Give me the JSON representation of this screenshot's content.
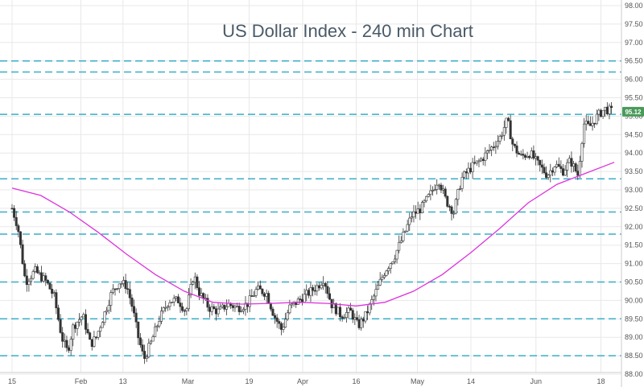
{
  "chart_data": {
    "type": "candlestick",
    "title": "US Dollar Index - 240 min Chart",
    "ylim": [
      88.0,
      98.0
    ],
    "y_ticks": [
      "98.00",
      "97.50",
      "97.00",
      "96.50",
      "96.00",
      "95.50",
      "95.00",
      "94.50",
      "94.00",
      "93.50",
      "93.00",
      "92.50",
      "92.00",
      "91.50",
      "91.00",
      "90.50",
      "90.00",
      "89.50",
      "89.00",
      "88.50",
      "88.00"
    ],
    "x_ticks": [
      "15",
      "Feb",
      "13",
      "Mar",
      "19",
      "Apr",
      "16",
      "May",
      "14",
      "Jun",
      "18"
    ],
    "current_price": "95.12",
    "horizontal_levels": [
      96.5,
      96.2,
      95.05,
      93.3,
      92.4,
      91.8,
      90.5,
      89.5,
      88.5
    ],
    "grid": true,
    "colors": {
      "candle": "#333333",
      "moving_average": "#dd33dd",
      "level_lines": "#3aaec8",
      "price_badge": "#4a9a5a",
      "grid": "#e8e8e8",
      "title": "#4a5a68"
    },
    "moving_average": [
      {
        "x": 0,
        "y": 93.05
      },
      {
        "x": 0.75,
        "y": 92.85
      },
      {
        "x": 1.5,
        "y": 92.4
      },
      {
        "x": 2.25,
        "y": 91.85
      },
      {
        "x": 3.0,
        "y": 91.25
      },
      {
        "x": 3.75,
        "y": 90.7
      },
      {
        "x": 4.5,
        "y": 90.25
      },
      {
        "x": 5.25,
        "y": 89.95
      },
      {
        "x": 6.0,
        "y": 89.9
      },
      {
        "x": 6.75,
        "y": 89.92
      },
      {
        "x": 7.5,
        "y": 89.95
      },
      {
        "x": 8.25,
        "y": 89.92
      },
      {
        "x": 9.0,
        "y": 89.85
      },
      {
        "x": 9.75,
        "y": 89.95
      },
      {
        "x": 10.5,
        "y": 90.25
      },
      {
        "x": 11.25,
        "y": 90.7
      },
      {
        "x": 12.0,
        "y": 91.3
      },
      {
        "x": 12.75,
        "y": 91.95
      },
      {
        "x": 13.5,
        "y": 92.65
      },
      {
        "x": 14.25,
        "y": 93.15
      },
      {
        "x": 15.0,
        "y": 93.45
      },
      {
        "x": 15.75,
        "y": 93.75
      }
    ],
    "price_path": [
      {
        "x": 0,
        "y": 92.5
      },
      {
        "x": 0.15,
        "y": 92.0
      },
      {
        "x": 0.35,
        "y": 90.5
      },
      {
        "x": 0.6,
        "y": 90.8
      },
      {
        "x": 0.9,
        "y": 90.5
      },
      {
        "x": 1.1,
        "y": 90.1
      },
      {
        "x": 1.3,
        "y": 89.0
      },
      {
        "x": 1.45,
        "y": 88.6
      },
      {
        "x": 1.6,
        "y": 89.3
      },
      {
        "x": 1.85,
        "y": 89.6
      },
      {
        "x": 2.05,
        "y": 88.8
      },
      {
        "x": 2.2,
        "y": 89.0
      },
      {
        "x": 2.4,
        "y": 89.6
      },
      {
        "x": 2.6,
        "y": 90.2
      },
      {
        "x": 2.8,
        "y": 90.5
      },
      {
        "x": 3.0,
        "y": 90.4
      },
      {
        "x": 3.15,
        "y": 89.8
      },
      {
        "x": 3.3,
        "y": 89.0
      },
      {
        "x": 3.45,
        "y": 88.4
      },
      {
        "x": 3.65,
        "y": 88.9
      },
      {
        "x": 3.85,
        "y": 89.5
      },
      {
        "x": 4.1,
        "y": 90.0
      },
      {
        "x": 4.35,
        "y": 90.0
      },
      {
        "x": 4.55,
        "y": 89.7
      },
      {
        "x": 4.75,
        "y": 90.7
      },
      {
        "x": 4.9,
        "y": 90.2
      },
      {
        "x": 5.15,
        "y": 89.8
      },
      {
        "x": 5.4,
        "y": 89.7
      },
      {
        "x": 5.65,
        "y": 89.9
      },
      {
        "x": 5.9,
        "y": 89.8
      },
      {
        "x": 6.15,
        "y": 89.9
      },
      {
        "x": 6.4,
        "y": 90.3
      },
      {
        "x": 6.65,
        "y": 90.2
      },
      {
        "x": 6.85,
        "y": 89.6
      },
      {
        "x": 7.05,
        "y": 89.2
      },
      {
        "x": 7.25,
        "y": 89.8
      },
      {
        "x": 7.5,
        "y": 90.0
      },
      {
        "x": 7.75,
        "y": 90.2
      },
      {
        "x": 8.0,
        "y": 90.4
      },
      {
        "x": 8.15,
        "y": 90.6
      },
      {
        "x": 8.35,
        "y": 89.9
      },
      {
        "x": 8.6,
        "y": 89.6
      },
      {
        "x": 8.85,
        "y": 89.7
      },
      {
        "x": 9.05,
        "y": 89.3
      },
      {
        "x": 9.25,
        "y": 89.6
      },
      {
        "x": 9.5,
        "y": 90.2
      },
      {
        "x": 9.75,
        "y": 90.8
      },
      {
        "x": 10.0,
        "y": 91.2
      },
      {
        "x": 10.25,
        "y": 91.8
      },
      {
        "x": 10.45,
        "y": 92.3
      },
      {
        "x": 10.7,
        "y": 92.5
      },
      {
        "x": 10.95,
        "y": 92.9
      },
      {
        "x": 11.15,
        "y": 93.3
      },
      {
        "x": 11.35,
        "y": 92.7
      },
      {
        "x": 11.55,
        "y": 92.4
      },
      {
        "x": 11.75,
        "y": 93.3
      },
      {
        "x": 12.0,
        "y": 93.6
      },
      {
        "x": 12.25,
        "y": 93.8
      },
      {
        "x": 12.5,
        "y": 94.1
      },
      {
        "x": 12.75,
        "y": 94.4
      },
      {
        "x": 12.95,
        "y": 94.9
      },
      {
        "x": 13.1,
        "y": 94.2
      },
      {
        "x": 13.3,
        "y": 93.9
      },
      {
        "x": 13.55,
        "y": 94.0
      },
      {
        "x": 13.75,
        "y": 93.7
      },
      {
        "x": 14.0,
        "y": 93.4
      },
      {
        "x": 14.2,
        "y": 93.7
      },
      {
        "x": 14.4,
        "y": 93.5
      },
      {
        "x": 14.6,
        "y": 93.8
      },
      {
        "x": 14.8,
        "y": 93.4
      },
      {
        "x": 14.95,
        "y": 94.8
      },
      {
        "x": 15.1,
        "y": 94.7
      },
      {
        "x": 15.3,
        "y": 95.0
      },
      {
        "x": 15.5,
        "y": 95.2
      },
      {
        "x": 15.7,
        "y": 95.12
      }
    ]
  }
}
